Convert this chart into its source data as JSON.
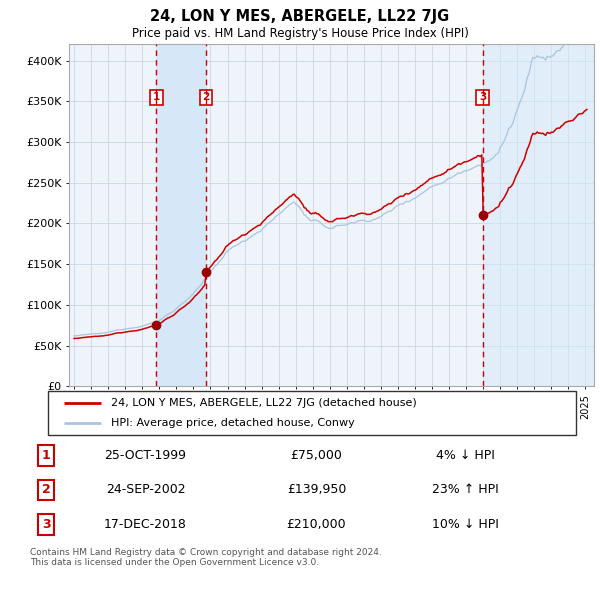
{
  "title": "24, LON Y MES, ABERGELE, LL22 7JG",
  "subtitle": "Price paid vs. HM Land Registry's House Price Index (HPI)",
  "legend_line1": "24, LON Y MES, ABERGELE, LL22 7JG (detached house)",
  "legend_line2": "HPI: Average price, detached house, Conwy",
  "footer1": "Contains HM Land Registry data © Crown copyright and database right 2024.",
  "footer2": "This data is licensed under the Open Government Licence v3.0.",
  "transactions": [
    {
      "label": "1",
      "date_str": "25-OCT-1999",
      "date_num": 1999.82,
      "price": 75000,
      "pct": "4%",
      "dir": "↓"
    },
    {
      "label": "2",
      "date_str": "24-SEP-2002",
      "date_num": 2002.74,
      "price": 139950,
      "pct": "23%",
      "dir": "↑"
    },
    {
      "label": "3",
      "date_str": "17-DEC-2018",
      "date_num": 2018.96,
      "price": 210000,
      "pct": "10%",
      "dir": "↓"
    }
  ],
  "table_rows": [
    [
      "1",
      "25-OCT-1999",
      "£75,000",
      "4% ↓ HPI"
    ],
    [
      "2",
      "24-SEP-2002",
      "£139,950",
      "23% ↑ HPI"
    ],
    [
      "3",
      "17-DEC-2018",
      "£210,000",
      "10% ↓ HPI"
    ]
  ],
  "ylim": [
    0,
    420000
  ],
  "yticks": [
    0,
    50000,
    100000,
    150000,
    200000,
    250000,
    300000,
    350000,
    400000
  ],
  "ytick_labels": [
    "£0",
    "£50K",
    "£100K",
    "£150K",
    "£200K",
    "£250K",
    "£300K",
    "£350K",
    "£400K"
  ],
  "xlim_start": 1994.7,
  "xlim_end": 2025.5,
  "xtick_years": [
    1995,
    1996,
    1997,
    1998,
    1999,
    2000,
    2001,
    2002,
    2003,
    2004,
    2005,
    2006,
    2007,
    2008,
    2009,
    2010,
    2011,
    2012,
    2013,
    2014,
    2015,
    2016,
    2017,
    2018,
    2019,
    2020,
    2021,
    2022,
    2023,
    2024,
    2025
  ],
  "hpi_color": "#aac4e0",
  "price_color": "#cc0000",
  "dot_color": "#990000",
  "vline_color": "#cc0000",
  "shade_color": "#d6e8f7",
  "grid_color": "#c8d8e8",
  "background_color": "#eef4fa"
}
